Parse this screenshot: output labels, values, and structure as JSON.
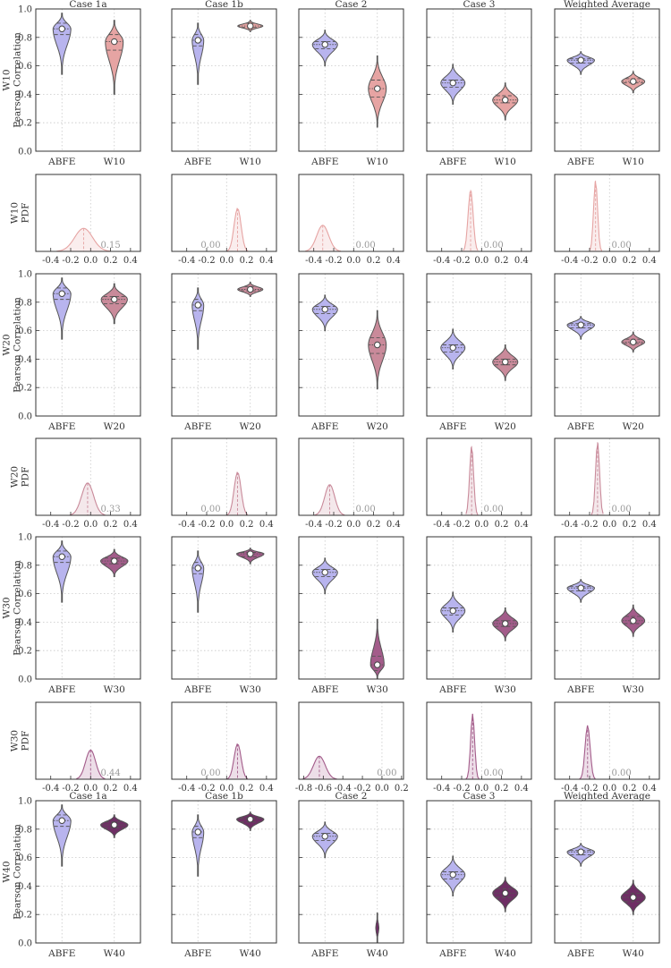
{
  "chart_data": {
    "type": "violin_grid",
    "columns": [
      "Case 1a",
      "Case 1b",
      "Case 2",
      "Case 3",
      "Weighted Average"
    ],
    "baseline_label": "ABFE",
    "colors": {
      "ABFE": "#b8b4ee",
      "W10": "#e6a4a3",
      "W20": "#c98a9a",
      "W30": "#a35c8a",
      "W40": "#6e2e64"
    },
    "violin_ylim": [
      0.0,
      1.0
    ],
    "violin_yticks": [
      "0.0",
      "0.2",
      "0.4",
      "0.6",
      "0.8",
      "1.0"
    ],
    "violin_rows": [
      {
        "name": "W10",
        "ylabel_1": "W10",
        "ylabel_2": "Pearson Correlation",
        "show_titles": true,
        "panels": [
          {
            "abfe": {
              "median": 0.86,
              "q1": 0.82,
              "q3": 0.9,
              "min": 0.54,
              "max": 0.97,
              "width": 0.34
            },
            "w": {
              "median": 0.77,
              "q1": 0.71,
              "q3": 0.82,
              "min": 0.4,
              "max": 0.92,
              "width": 0.34
            }
          },
          {
            "abfe": {
              "median": 0.78,
              "q1": 0.74,
              "q3": 0.82,
              "min": 0.47,
              "max": 0.9,
              "width": 0.22
            },
            "w": {
              "median": 0.88,
              "q1": 0.87,
              "q3": 0.9,
              "min": 0.84,
              "max": 0.92,
              "width": 0.48
            }
          },
          {
            "abfe": {
              "median": 0.75,
              "q1": 0.72,
              "q3": 0.77,
              "min": 0.6,
              "max": 0.85,
              "width": 0.48
            },
            "w": {
              "median": 0.44,
              "q1": 0.38,
              "q3": 0.5,
              "min": 0.17,
              "max": 0.67,
              "width": 0.34
            }
          },
          {
            "abfe": {
              "median": 0.48,
              "q1": 0.45,
              "q3": 0.5,
              "min": 0.33,
              "max": 0.61,
              "width": 0.46
            },
            "w": {
              "median": 0.36,
              "q1": 0.34,
              "q3": 0.39,
              "min": 0.22,
              "max": 0.48,
              "width": 0.48
            }
          },
          {
            "abfe": {
              "median": 0.64,
              "q1": 0.62,
              "q3": 0.65,
              "min": 0.54,
              "max": 0.7,
              "width": 0.52
            },
            "w": {
              "median": 0.49,
              "q1": 0.48,
              "q3": 0.51,
              "min": 0.41,
              "max": 0.56,
              "width": 0.44
            }
          }
        ]
      },
      {
        "name": "W20",
        "ylabel_1": "W20",
        "ylabel_2": "Pearson Correlation",
        "show_titles": false,
        "panels": [
          {
            "abfe": {
              "median": 0.86,
              "q1": 0.82,
              "q3": 0.9,
              "min": 0.54,
              "max": 0.97,
              "width": 0.34
            },
            "w": {
              "median": 0.82,
              "q1": 0.79,
              "q3": 0.84,
              "min": 0.65,
              "max": 0.93,
              "width": 0.5
            }
          },
          {
            "abfe": {
              "median": 0.78,
              "q1": 0.74,
              "q3": 0.82,
              "min": 0.47,
              "max": 0.9,
              "width": 0.22
            },
            "w": {
              "median": 0.89,
              "q1": 0.88,
              "q3": 0.91,
              "min": 0.84,
              "max": 0.94,
              "width": 0.48
            }
          },
          {
            "abfe": {
              "median": 0.75,
              "q1": 0.72,
              "q3": 0.77,
              "min": 0.6,
              "max": 0.85,
              "width": 0.48
            },
            "w": {
              "median": 0.5,
              "q1": 0.44,
              "q3": 0.55,
              "min": 0.19,
              "max": 0.74,
              "width": 0.34
            }
          },
          {
            "abfe": {
              "median": 0.48,
              "q1": 0.45,
              "q3": 0.5,
              "min": 0.33,
              "max": 0.61,
              "width": 0.46
            },
            "w": {
              "median": 0.38,
              "q1": 0.36,
              "q3": 0.4,
              "min": 0.25,
              "max": 0.5,
              "width": 0.48
            }
          },
          {
            "abfe": {
              "median": 0.64,
              "q1": 0.62,
              "q3": 0.65,
              "min": 0.54,
              "max": 0.7,
              "width": 0.52
            },
            "w": {
              "median": 0.52,
              "q1": 0.51,
              "q3": 0.54,
              "min": 0.45,
              "max": 0.59,
              "width": 0.44
            }
          }
        ]
      },
      {
        "name": "W30",
        "ylabel_1": "W30",
        "ylabel_2": "Pearson Correlation",
        "show_titles": false,
        "panels": [
          {
            "abfe": {
              "median": 0.86,
              "q1": 0.82,
              "q3": 0.9,
              "min": 0.54,
              "max": 0.97,
              "width": 0.34
            },
            "w": {
              "median": 0.83,
              "q1": 0.81,
              "q3": 0.85,
              "min": 0.72,
              "max": 0.91,
              "width": 0.52
            }
          },
          {
            "abfe": {
              "median": 0.78,
              "q1": 0.74,
              "q3": 0.82,
              "min": 0.47,
              "max": 0.9,
              "width": 0.22
            },
            "w": {
              "median": 0.88,
              "q1": 0.86,
              "q3": 0.89,
              "min": 0.81,
              "max": 0.92,
              "width": 0.52
            }
          },
          {
            "abfe": {
              "median": 0.75,
              "q1": 0.72,
              "q3": 0.77,
              "min": 0.6,
              "max": 0.85,
              "width": 0.48
            },
            "w": {
              "median": 0.1,
              "q1": 0.06,
              "q3": 0.16,
              "min": 0.0,
              "max": 0.42,
              "width": 0.26
            }
          },
          {
            "abfe": {
              "median": 0.48,
              "q1": 0.45,
              "q3": 0.5,
              "min": 0.33,
              "max": 0.61,
              "width": 0.46
            },
            "w": {
              "median": 0.39,
              "q1": 0.37,
              "q3": 0.41,
              "min": 0.27,
              "max": 0.5,
              "width": 0.48
            }
          },
          {
            "abfe": {
              "median": 0.64,
              "q1": 0.62,
              "q3": 0.65,
              "min": 0.54,
              "max": 0.7,
              "width": 0.52
            },
            "w": {
              "median": 0.41,
              "q1": 0.39,
              "q3": 0.44,
              "min": 0.3,
              "max": 0.52,
              "width": 0.44
            }
          }
        ]
      },
      {
        "name": "W40",
        "ylabel_1": "W40",
        "ylabel_2": "Pearson Correlation",
        "show_titles": true,
        "panels": [
          {
            "abfe": {
              "median": 0.86,
              "q1": 0.82,
              "q3": 0.9,
              "min": 0.54,
              "max": 0.97,
              "width": 0.34
            },
            "w": {
              "median": 0.83,
              "q1": 0.81,
              "q3": 0.85,
              "min": 0.74,
              "max": 0.9,
              "width": 0.52
            }
          },
          {
            "abfe": {
              "median": 0.78,
              "q1": 0.74,
              "q3": 0.82,
              "min": 0.47,
              "max": 0.9,
              "width": 0.22
            },
            "w": {
              "median": 0.87,
              "q1": 0.85,
              "q3": 0.88,
              "min": 0.79,
              "max": 0.92,
              "width": 0.52
            }
          },
          {
            "abfe": {
              "median": 0.75,
              "q1": 0.72,
              "q3": 0.77,
              "min": 0.6,
              "max": 0.85,
              "width": 0.48
            },
            "w": {
              "median": null,
              "q1": null,
              "q3": null,
              "min": 0.0,
              "max": 0.21,
              "width": 0.06
            }
          },
          {
            "abfe": {
              "median": 0.48,
              "q1": 0.45,
              "q3": 0.5,
              "min": 0.33,
              "max": 0.61,
              "width": 0.46
            },
            "w": {
              "median": 0.35,
              "q1": 0.32,
              "q3": 0.38,
              "min": 0.22,
              "max": 0.46,
              "width": 0.48
            }
          },
          {
            "abfe": {
              "median": 0.64,
              "q1": 0.62,
              "q3": 0.65,
              "min": 0.54,
              "max": 0.7,
              "width": 0.52
            },
            "w": {
              "median": 0.32,
              "q1": 0.29,
              "q3": 0.35,
              "min": 0.2,
              "max": 0.44,
              "width": 0.46
            }
          }
        ]
      }
    ],
    "pdf_rows": [
      {
        "name": "W10",
        "ylabel_1": "W10",
        "ylabel_2": "PDF",
        "panels": [
          {
            "xlim": [
              -0.55,
              0.5
            ],
            "xticks": [
              "-0.4",
              "-0.2",
              "0.0",
              "0.2",
              "0.4"
            ],
            "xtick_values": [
              -0.4,
              -0.2,
              0.0,
              0.2,
              0.4
            ],
            "mean": -0.07,
            "sd": 0.09,
            "peak": 0.3,
            "value_label": "0.15",
            "label_x": 0.2
          },
          {
            "xlim": [
              -0.55,
              0.5
            ],
            "xticks": [
              "-0.4",
              "-0.2",
              "0.0",
              "0.2",
              "0.4"
            ],
            "xtick_values": [
              -0.4,
              -0.2,
              0.0,
              0.2,
              0.4
            ],
            "mean": 0.11,
            "sd": 0.035,
            "peak": 0.56,
            "value_label": "0.00",
            "label_x": -0.16
          },
          {
            "xlim": [
              -0.55,
              0.5
            ],
            "xticks": [
              "-0.4",
              "-0.2",
              "0.0",
              "0.2",
              "0.4"
            ],
            "xtick_values": [
              -0.4,
              -0.2,
              0.0,
              0.2,
              0.4
            ],
            "mean": -0.31,
            "sd": 0.06,
            "peak": 0.34,
            "value_label": "0.00",
            "label_x": 0.12
          },
          {
            "xlim": [
              -0.55,
              0.5
            ],
            "xticks": [
              "-0.4",
              "-0.2",
              "0.0",
              "0.2",
              "0.4"
            ],
            "xtick_values": [
              -0.4,
              -0.2,
              0.0,
              0.2,
              0.4
            ],
            "mean": -0.11,
            "sd": 0.025,
            "peak": 0.8,
            "value_label": "0.00",
            "label_x": 0.12
          },
          {
            "xlim": [
              -0.55,
              0.5
            ],
            "xticks": [
              "-0.4",
              "-0.2",
              "0.0",
              "0.2",
              "0.4"
            ],
            "xtick_values": [
              -0.4,
              -0.2,
              0.0,
              0.2,
              0.4
            ],
            "mean": -0.14,
            "sd": 0.02,
            "peak": 0.92,
            "value_label": "0.00",
            "label_x": 0.12
          }
        ]
      },
      {
        "name": "W20",
        "ylabel_1": "W20",
        "ylabel_2": "PDF",
        "panels": [
          {
            "xlim": [
              -0.55,
              0.5
            ],
            "xticks": [
              "-0.4",
              "-0.2",
              "0.0",
              "0.2",
              "0.4"
            ],
            "xtick_values": [
              -0.4,
              -0.2,
              0.0,
              0.2,
              0.4
            ],
            "mean": -0.03,
            "sd": 0.06,
            "peak": 0.42,
            "value_label": "0.33",
            "label_x": 0.2
          },
          {
            "xlim": [
              -0.55,
              0.5
            ],
            "xticks": [
              "-0.4",
              "-0.2",
              "0.0",
              "0.2",
              "0.4"
            ],
            "xtick_values": [
              -0.4,
              -0.2,
              0.0,
              0.2,
              0.4
            ],
            "mean": 0.11,
            "sd": 0.035,
            "peak": 0.56,
            "value_label": "0.00",
            "label_x": -0.16
          },
          {
            "xlim": [
              -0.55,
              0.5
            ],
            "xticks": [
              "-0.4",
              "-0.2",
              "0.0",
              "0.2",
              "0.4"
            ],
            "xtick_values": [
              -0.4,
              -0.2,
              0.0,
              0.2,
              0.4
            ],
            "mean": -0.24,
            "sd": 0.05,
            "peak": 0.4,
            "value_label": "0.00",
            "label_x": 0.12
          },
          {
            "xlim": [
              -0.55,
              0.5
            ],
            "xticks": [
              "-0.4",
              "-0.2",
              "0.0",
              "0.2",
              "0.4"
            ],
            "xtick_values": [
              -0.4,
              -0.2,
              0.0,
              0.2,
              0.4
            ],
            "mean": -0.1,
            "sd": 0.02,
            "peak": 0.9,
            "value_label": "0.00",
            "label_x": 0.12
          },
          {
            "xlim": [
              -0.55,
              0.5
            ],
            "xticks": [
              "-0.4",
              "-0.2",
              "0.0",
              "0.2",
              "0.4"
            ],
            "xtick_values": [
              -0.4,
              -0.2,
              0.0,
              0.2,
              0.4
            ],
            "mean": -0.12,
            "sd": 0.02,
            "peak": 0.95,
            "value_label": "0.00",
            "label_x": 0.12
          }
        ]
      },
      {
        "name": "W30",
        "ylabel_1": "W30",
        "ylabel_2": "PDF",
        "panels": [
          {
            "xlim": [
              -0.55,
              0.5
            ],
            "xticks": [
              "-0.4",
              "-0.2",
              "0.0",
              "0.2",
              "0.4"
            ],
            "xtick_values": [
              -0.4,
              -0.2,
              0.0,
              0.2,
              0.4
            ],
            "mean": 0.0,
            "sd": 0.05,
            "peak": 0.38,
            "value_label": "0.44",
            "label_x": 0.2
          },
          {
            "xlim": [
              -0.55,
              0.5
            ],
            "xticks": [
              "-0.4",
              "-0.2",
              "0.0",
              "0.2",
              "0.4"
            ],
            "xtick_values": [
              -0.4,
              -0.2,
              0.0,
              0.2,
              0.4
            ],
            "mean": 0.11,
            "sd": 0.035,
            "peak": 0.46,
            "value_label": "0.00",
            "label_x": -0.16
          },
          {
            "xlim": [
              -0.85,
              0.22
            ],
            "xticks": [
              "-0.8",
              "-0.6",
              "-0.4",
              "-0.2",
              "0.0",
              "0.2"
            ],
            "xtick_values": [
              -0.8,
              -0.6,
              -0.4,
              -0.2,
              0.0,
              0.2
            ],
            "mean": -0.64,
            "sd": 0.06,
            "peak": 0.3,
            "value_label": "0.00",
            "label_x": 0.05
          },
          {
            "xlim": [
              -0.55,
              0.5
            ],
            "xticks": [
              "-0.4",
              "-0.2",
              "0.0",
              "0.2",
              "0.4"
            ],
            "xtick_values": [
              -0.4,
              -0.2,
              0.0,
              0.2,
              0.4
            ],
            "mean": -0.09,
            "sd": 0.02,
            "peak": 0.85,
            "value_label": "0.00",
            "label_x": 0.12
          },
          {
            "xlim": [
              -0.55,
              0.5
            ],
            "xticks": [
              "-0.4",
              "-0.2",
              "0.0",
              "0.2",
              "0.4"
            ],
            "xtick_values": [
              -0.4,
              -0.2,
              0.0,
              0.2,
              0.4
            ],
            "mean": -0.22,
            "sd": 0.025,
            "peak": 0.7,
            "value_label": "0.00",
            "label_x": 0.12
          }
        ]
      }
    ]
  }
}
